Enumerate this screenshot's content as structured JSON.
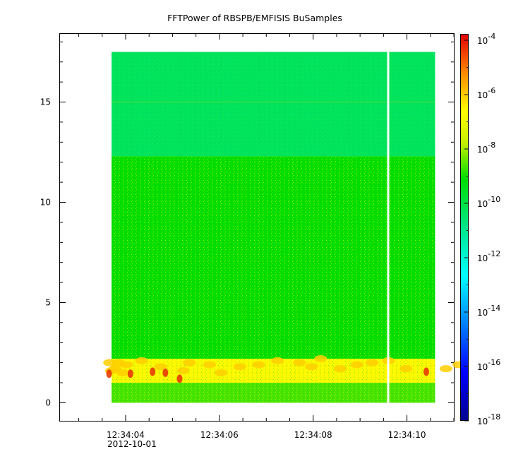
{
  "chart_data": {
    "type": "heatmap",
    "title": "FFTPower of RBSPB/EMFISIS  BuSamples",
    "xlabel": "",
    "ylabel": "",
    "x_tick_labels": [
      "12:34:04",
      "12:34:06",
      "12:34:08",
      "12:34:10"
    ],
    "x_start_label": "2012-10-01",
    "x_range_seconds": [
      "12:34:02.6",
      "12:34:11.0"
    ],
    "data_x_range": [
      "12:34:03.7",
      "12:34:10.6"
    ],
    "data_gap_at": "12:34:09.6",
    "y_ticks": [
      0,
      5,
      10,
      15
    ],
    "ylim": [
      -0.9,
      18.4
    ],
    "data_y_range": [
      0,
      17.5
    ],
    "colorbar": {
      "scale": "log",
      "tick_exponents": [
        -4,
        -6,
        -8,
        -10,
        -12,
        -14,
        -16,
        -18
      ],
      "tick_base": "10",
      "range": [
        "1e-18",
        "1e-4"
      ]
    },
    "bands": [
      {
        "y_from": 0,
        "y_to": 1.0,
        "level_exp": -9.5
      },
      {
        "y_from": 1.0,
        "y_to": 2.2,
        "level_exp": -7.5
      },
      {
        "y_from": 2.2,
        "y_to": 12.3,
        "level_exp": -10.0
      },
      {
        "y_from": 12.3,
        "y_to": 17.5,
        "level_exp": -11.3
      }
    ],
    "line_feature_y": 15.0,
    "grid": false,
    "legend": "colorbar-right"
  }
}
